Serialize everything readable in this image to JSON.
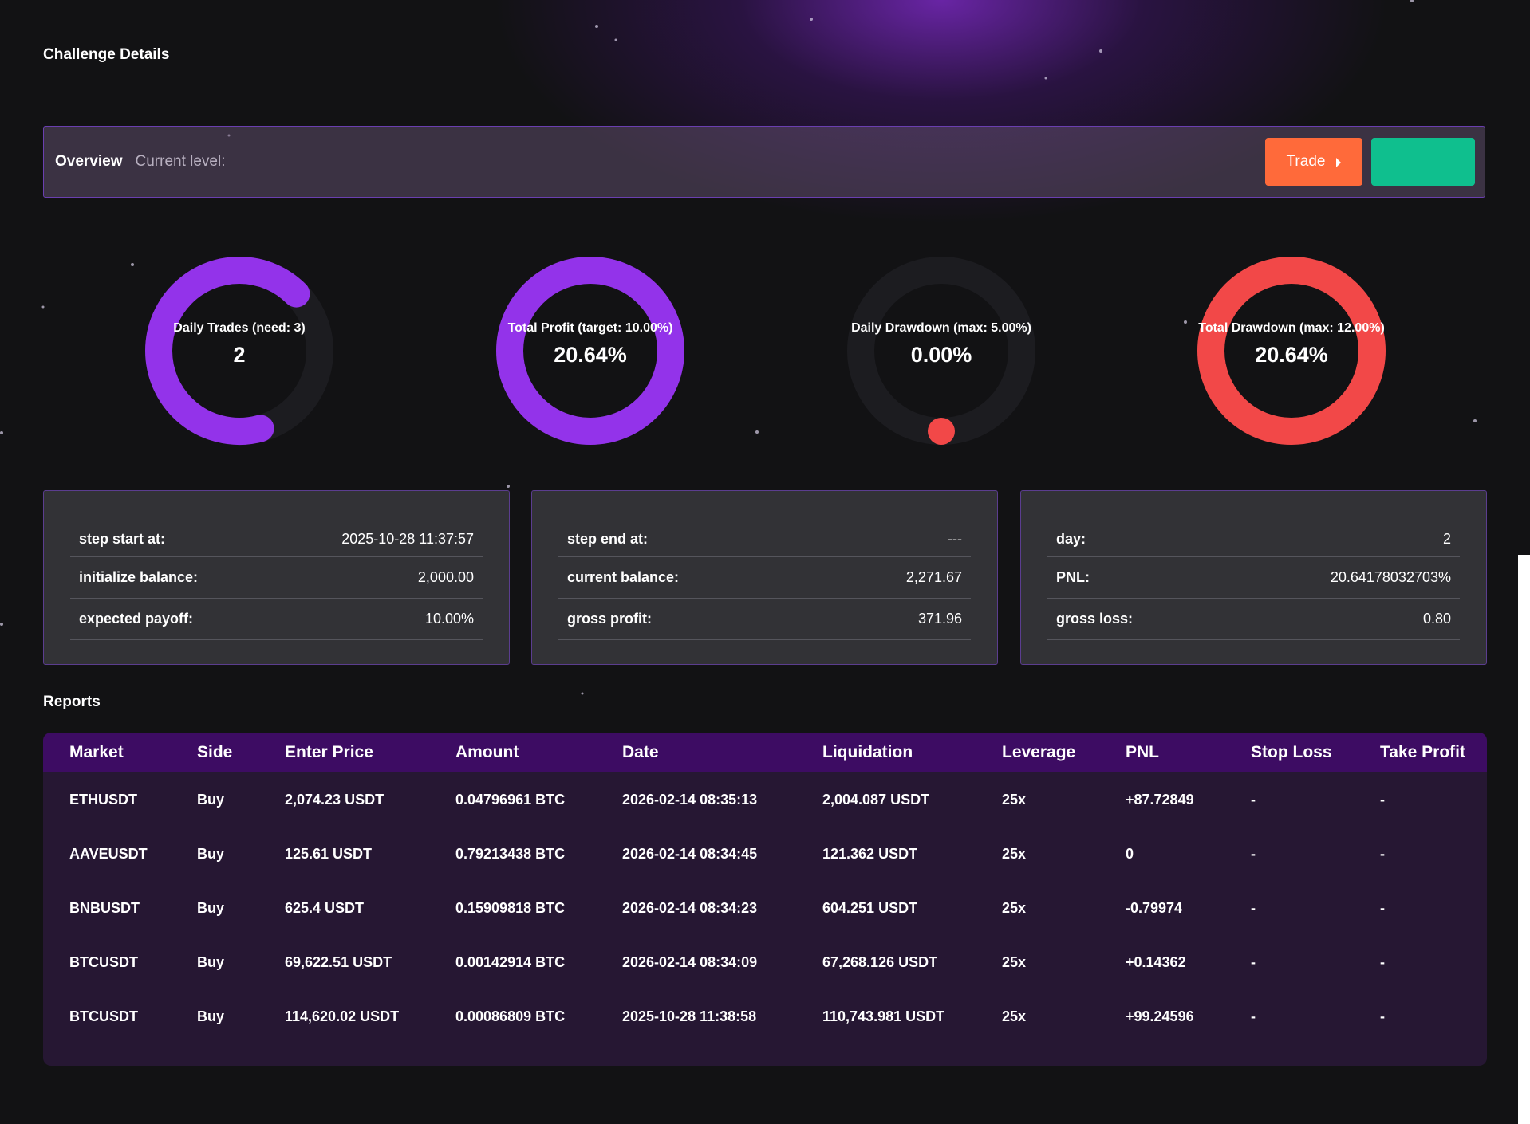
{
  "page": {
    "title": "Challenge Details"
  },
  "overview": {
    "label": "Overview",
    "current_level": "Current level:",
    "trade_button": "Trade",
    "trade_color": "#ff6a3a",
    "secondary_color": "#0fbf8e"
  },
  "gauges": [
    {
      "label": "Daily Trades (need: 3)",
      "value": "2",
      "progress": 0.667,
      "color": "#9333ea"
    },
    {
      "label": "Total Profit (target: 10.00%)",
      "value": "20.64%",
      "progress": 1.0,
      "color": "#9333ea"
    },
    {
      "label": "Daily Drawdown (max: 5.00%)",
      "value": "0.00%",
      "progress": 0.0,
      "color": "#f24848"
    },
    {
      "label": "Total Drawdown (max: 12.00%)",
      "value": "20.64%",
      "progress": 1.0,
      "color": "#f24848"
    }
  ],
  "cards": [
    {
      "rows": [
        {
          "k": "step start at:",
          "v": "2025-10-28 11:37:57"
        },
        {
          "k": "initialize balance:",
          "v": "2,000.00"
        },
        {
          "k": "expected payoff:",
          "v": "10.00%"
        }
      ]
    },
    {
      "rows": [
        {
          "k": "step end at:",
          "v": "---"
        },
        {
          "k": "current balance:",
          "v": "2,271.67"
        },
        {
          "k": "gross profit:",
          "v": "371.96"
        }
      ]
    },
    {
      "rows": [
        {
          "k": "day:",
          "v": "2"
        },
        {
          "k": "PNL:",
          "v": "20.64178032703%"
        },
        {
          "k": "gross loss:",
          "v": "0.80"
        }
      ]
    }
  ],
  "reports": {
    "title": "Reports",
    "columns": [
      "Market",
      "Side",
      "Enter Price",
      "Amount",
      "Date",
      "Liquidation",
      "Leverage",
      "PNL",
      "Stop Loss",
      "Take Profit"
    ],
    "rows": [
      [
        "ETHUSDT",
        "Buy",
        "2,074.23 USDT",
        "0.04796961 BTC",
        "2026-02-14 08:35:13",
        "2,004.087 USDT",
        "25x",
        "+87.72849",
        "-",
        "-"
      ],
      [
        "AAVEUSDT",
        "Buy",
        "125.61 USDT",
        "0.79213438 BTC",
        "2026-02-14 08:34:45",
        "121.362 USDT",
        "25x",
        "0",
        "-",
        "-"
      ],
      [
        "BNBUSDT",
        "Buy",
        "625.4 USDT",
        "0.15909818 BTC",
        "2026-02-14 08:34:23",
        "604.251 USDT",
        "25x",
        "-0.79974",
        "-",
        "-"
      ],
      [
        "BTCUSDT",
        "Buy",
        "69,622.51 USDT",
        "0.00142914 BTC",
        "2026-02-14 08:34:09",
        "67,268.126 USDT",
        "25x",
        "+0.14362",
        "-",
        "-"
      ],
      [
        "BTCUSDT",
        "Buy",
        "114,620.02 USDT",
        "0.00086809 BTC",
        "2025-10-28 11:38:58",
        "110,743.981 USDT",
        "25x",
        "+99.24596",
        "-",
        "-"
      ]
    ]
  }
}
